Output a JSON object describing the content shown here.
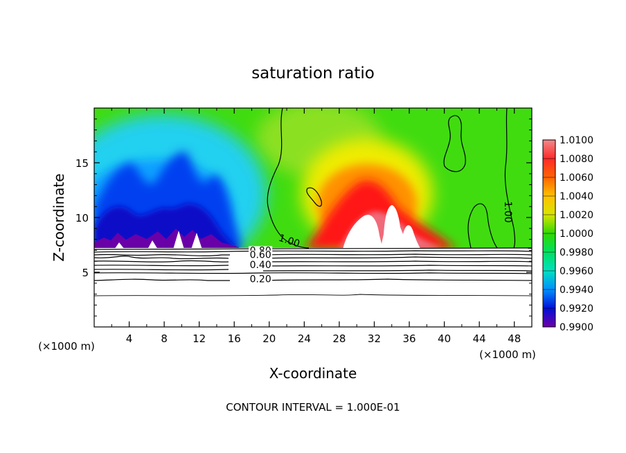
{
  "chart_data": {
    "type": "heatmap",
    "title": "saturation ratio",
    "xlabel": "X-coordinate",
    "ylabel": "Z-coordinate",
    "x_unit_label": "(×1000 m)",
    "footer": "CONTOUR INTERVAL = 1.000E-01",
    "xlim": [
      0,
      50
    ],
    "ylim": [
      0,
      20
    ],
    "x_ticks": [
      4,
      8,
      12,
      16,
      20,
      24,
      28,
      32,
      36,
      40,
      44,
      48
    ],
    "x_tick_labels": [
      "4",
      "8",
      "12",
      "16",
      "20",
      "24",
      "28",
      "32",
      "36",
      "40",
      "44",
      "48"
    ],
    "y_ticks": [
      5,
      10,
      15
    ],
    "y_tick_labels": [
      "5",
      "10",
      "15"
    ],
    "colorbar": {
      "min": 0.99,
      "max": 1.01,
      "labels": [
        "1.0100",
        "1.0080",
        "1.0060",
        "1.0040",
        "1.0020",
        "1.0000",
        "0.9980",
        "0.9960",
        "0.9940",
        "0.9920",
        "0.9900"
      ],
      "colors": [
        "#f08a8a",
        "#ff2a2a",
        "#ff6400",
        "#ffc000",
        "#d8e400",
        "#30d800",
        "#00e060",
        "#00e0c0",
        "#0090ff",
        "#0010d8",
        "#7000a8"
      ]
    },
    "contour_labels": [
      {
        "text": "0.80",
        "x": 19.0,
        "y": 7.0
      },
      {
        "text": "0.60",
        "x": 19.0,
        "y": 6.6
      },
      {
        "text": "0.40",
        "x": 19.0,
        "y": 5.7
      },
      {
        "text": "0.20",
        "x": 19.0,
        "y": 4.4
      },
      {
        "text": "1.00",
        "x": 22.3,
        "y": 7.9
      },
      {
        "text": "1.00",
        "x": 47.3,
        "y": 10.5
      }
    ],
    "field_notes": {
      "cloud_base_height": 7.3,
      "supersaturated_max_x": 31,
      "subsaturated_region_x": [
        0,
        18
      ]
    }
  }
}
